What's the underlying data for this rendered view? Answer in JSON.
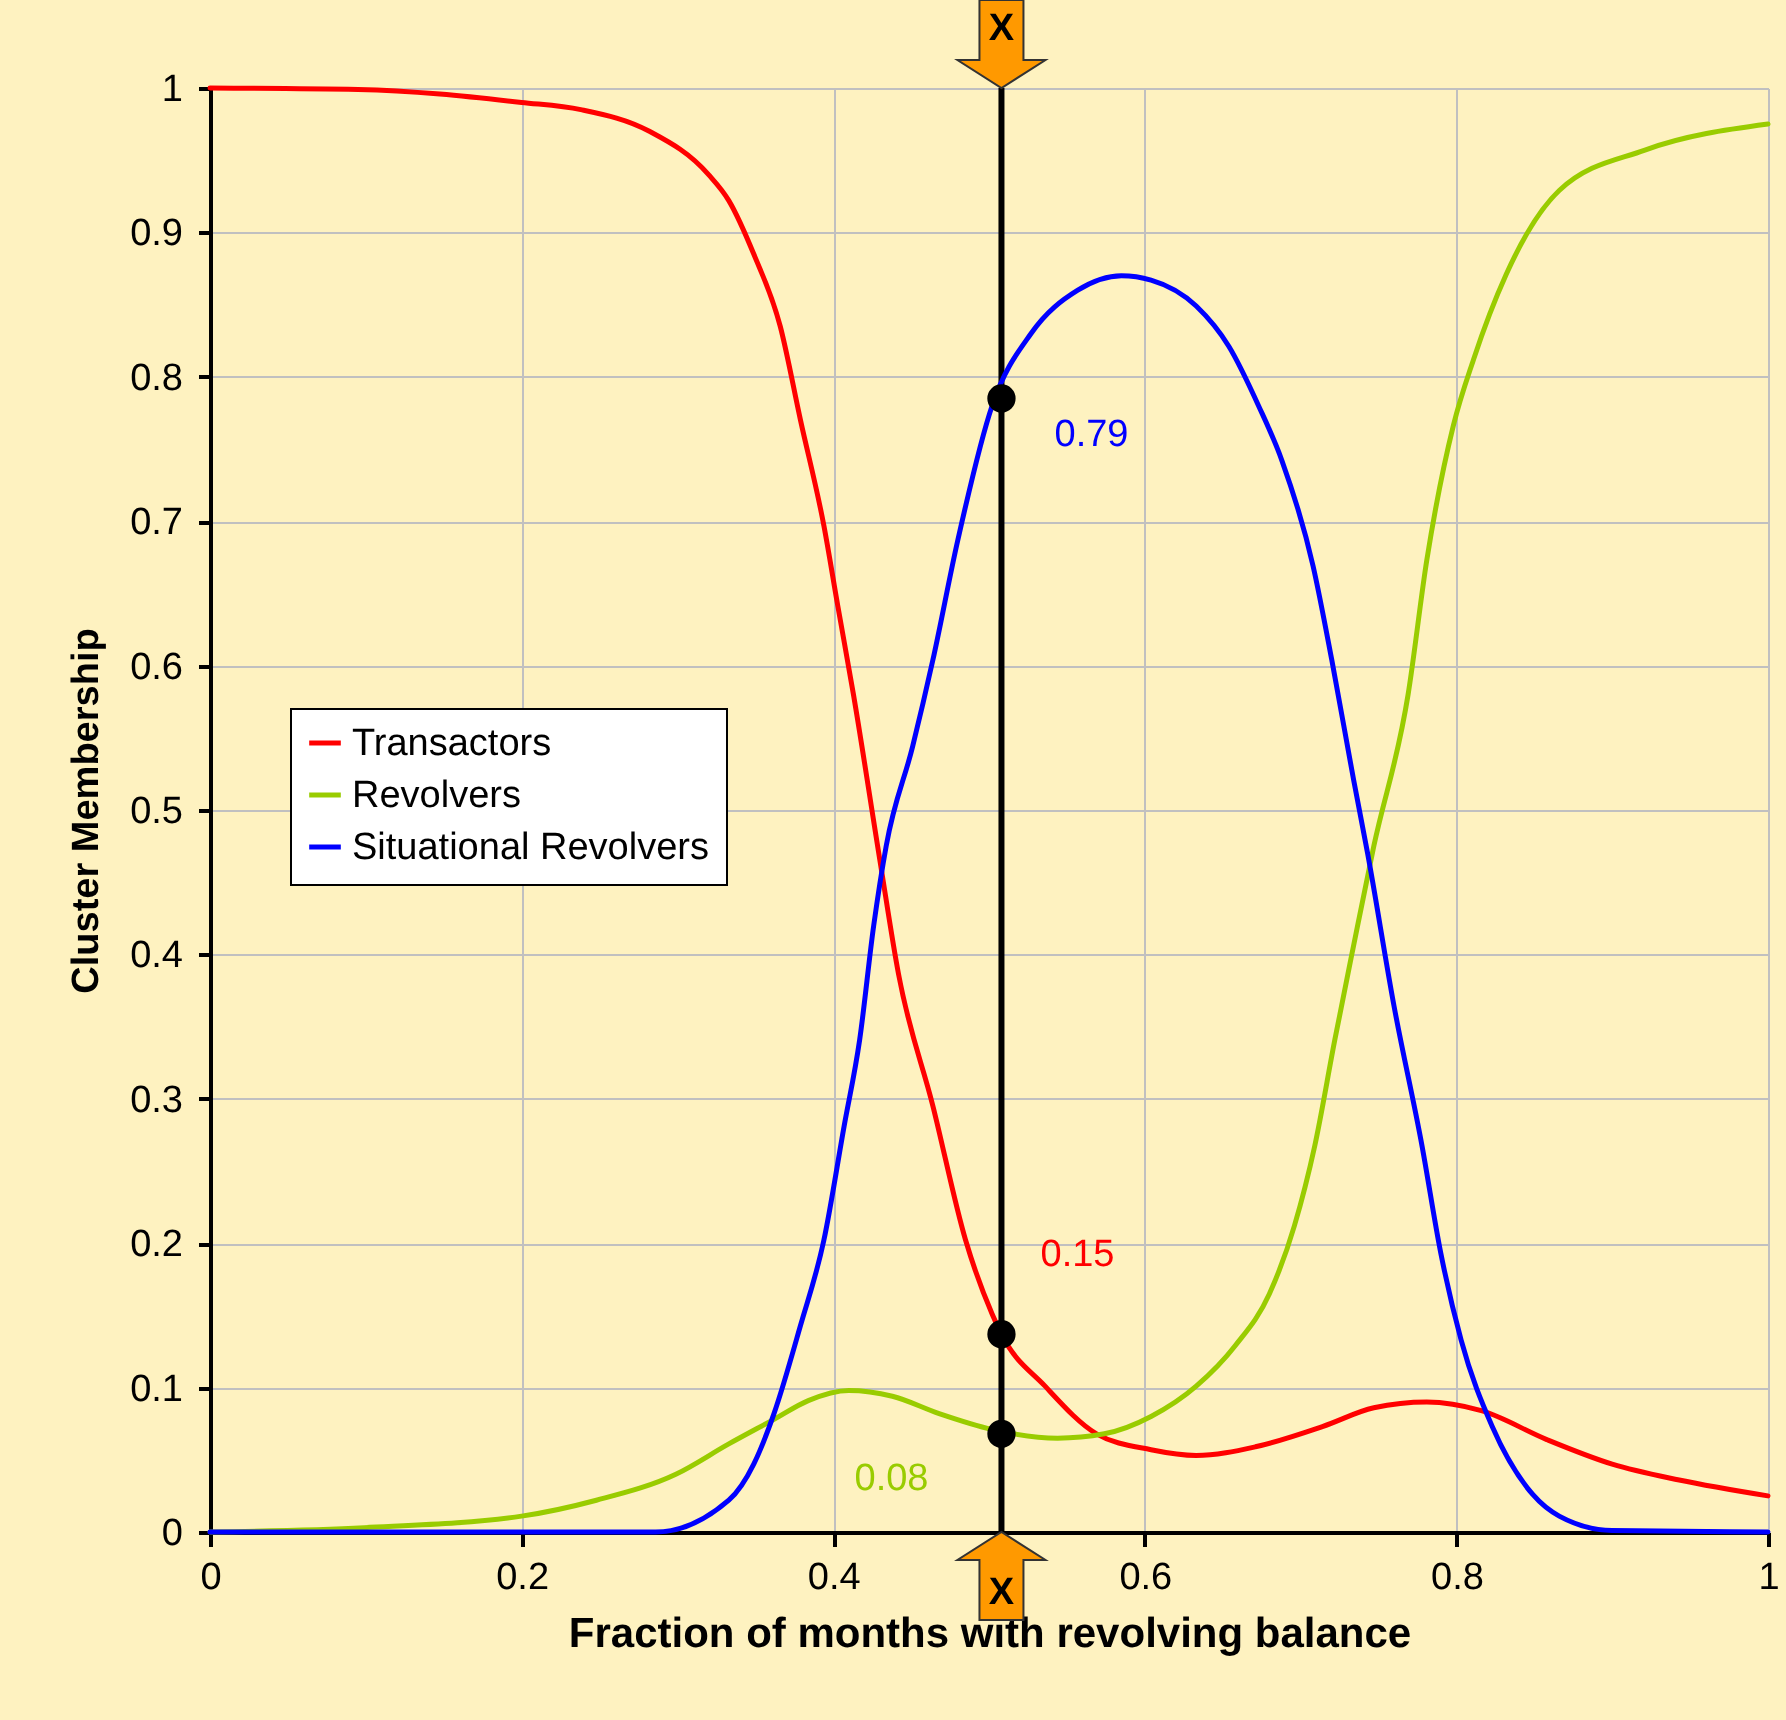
{
  "chart_data": {
    "type": "line",
    "xlabel": "Fraction of months with revolving balance",
    "ylabel": "Cluster Membership",
    "xlim": [
      0,
      1
    ],
    "xticks": [
      0,
      0.2,
      0.4,
      0.6,
      0.8,
      1
    ],
    "ylim": [
      0,
      1
    ],
    "yticks": [
      0,
      0.1,
      0.2,
      0.3,
      0.4,
      0.5,
      0.6,
      0.7,
      0.8,
      0.9,
      1
    ],
    "grid": true,
    "legend": "left",
    "marker": "none",
    "line_style": "solid",
    "series": [
      {
        "name": "Transactors",
        "color": "#ff0000",
        "x": [
          0,
          0.095,
          0.2,
          0.238,
          0.282,
          0.32,
          0.333,
          0.349,
          0.366,
          0.379,
          0.394,
          0.403,
          0.413,
          0.43,
          0.442,
          0.464,
          0.485,
          0.502,
          0.508,
          0.536,
          0.569,
          0.604,
          0.633,
          0.671,
          0.714,
          0.747,
          0.781,
          0.816,
          0.858,
          0.9,
          0.943,
          1
        ],
        "values": [
          1,
          0.999,
          0.99,
          0.985,
          0.97,
          0.94,
          0.922,
          0.885,
          0.835,
          0.77,
          0.697,
          0.641,
          0.58,
          0.465,
          0.386,
          0.295,
          0.202,
          0.151,
          0.137,
          0.101,
          0.068,
          0.057,
          0.053,
          0.059,
          0.073,
          0.086,
          0.09,
          0.084,
          0.064,
          0.047,
          0.036,
          0.025
        ]
      },
      {
        "name": "Revolvers",
        "color": "#99cc00",
        "x": [
          0,
          0.099,
          0.2,
          0.248,
          0.299,
          0.333,
          0.362,
          0.384,
          0.41,
          0.438,
          0.468,
          0.502,
          0.544,
          0.574,
          0.604,
          0.633,
          0.658,
          0.68,
          0.696,
          0.709,
          0.722,
          0.734,
          0.747,
          0.769,
          0.781,
          0.798,
          0.811,
          0.832,
          0.866,
          0.921,
          1
        ],
        "values": [
          0,
          0.003,
          0.011,
          0.022,
          0.04,
          0.061,
          0.078,
          0.091,
          0.098,
          0.094,
          0.082,
          0.071,
          0.065,
          0.068,
          0.08,
          0.101,
          0.129,
          0.165,
          0.212,
          0.267,
          0.341,
          0.406,
          0.475,
          0.58,
          0.673,
          0.766,
          0.812,
          0.871,
          0.929,
          0.957,
          0.975
        ]
      },
      {
        "name": "Situational Revolvers",
        "color": "#0000ff",
        "x": [
          0,
          0.286,
          0.333,
          0.349,
          0.362,
          0.379,
          0.394,
          0.407,
          0.417,
          0.426,
          0.434,
          0.451,
          0.464,
          0.48,
          0.502,
          0.527,
          0.557,
          0.585,
          0.604,
          0.633,
          0.654,
          0.673,
          0.688,
          0.708,
          0.72,
          0.734,
          0.743,
          0.76,
          0.778,
          0.79,
          0.803,
          0.823,
          0.849,
          0.866,
          0.9,
          1
        ],
        "values": [
          0,
          0,
          0.022,
          0.047,
          0.082,
          0.143,
          0.202,
          0.281,
          0.341,
          0.42,
          0.475,
          0.544,
          0.604,
          0.687,
          0.78,
          0.83,
          0.86,
          0.87,
          0.867,
          0.849,
          0.821,
          0.78,
          0.742,
          0.669,
          0.604,
          0.521,
          0.47,
          0.364,
          0.267,
          0.193,
          0.133,
          0.073,
          0.026,
          0.011,
          0.001,
          0
        ]
      },
      {
        "type": "scatter",
        "color": "#000000",
        "marker": "circle",
        "x": [
          0.508,
          0.508,
          0.508
        ],
        "values": [
          0.785,
          0.137,
          0.068
        ]
      }
    ],
    "ref_lines": [
      {
        "axis": "x",
        "value": 0.508,
        "label": "X",
        "color": "#000000"
      }
    ],
    "annotations": [
      "0.79",
      "0.15",
      "0.08"
    ]
  }
}
